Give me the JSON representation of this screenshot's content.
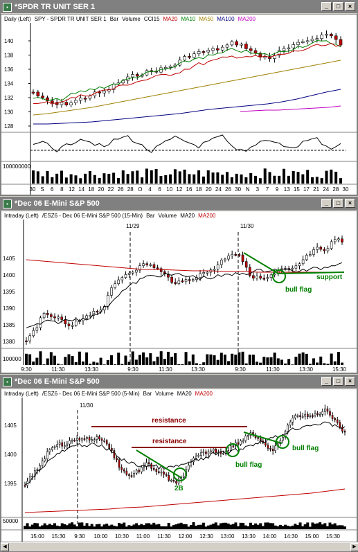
{
  "panels": [
    {
      "title": "*SPDR TR UNIT SER 1",
      "header": [
        "Daily  (Left)",
        "SPY - SPDR TR UNIT SER 1",
        "Bar",
        "Volume",
        "CCI15",
        "MA20",
        "MA10",
        "MA50",
        "MA100",
        "MA200"
      ],
      "header_colors": [
        "#000",
        "#000",
        "#000",
        "#000",
        "#000",
        "#c00000",
        "#008000",
        "#a08000",
        "#000080",
        "#c000c0"
      ],
      "price_ticks": [
        "140",
        "138",
        "136",
        "134",
        "132",
        "130",
        "128"
      ],
      "vol_label": "100000000",
      "dates": [
        "30",
        "S",
        "6",
        "8",
        "12",
        "14",
        "18",
        "20",
        "22",
        "26",
        "28",
        "O",
        "4",
        "6",
        "10",
        "12",
        "16",
        "18",
        "20",
        "24",
        "26",
        "30",
        "N",
        "3",
        "7",
        "9",
        "13",
        "15",
        "17",
        "21",
        "24",
        "28",
        "30"
      ],
      "cci_ticks": []
    },
    {
      "title": "*Dec 06  E-Mini S&P 500",
      "header": [
        "Intraday  (Left)",
        "/ESZ6 - Dec 06  E-Mini S&P 500  (15-Min)",
        "Bar",
        "Volume",
        "MA20",
        "MA200"
      ],
      "header_colors": [
        "#000",
        "#000",
        "#000",
        "#000",
        "#000",
        "#c00000"
      ],
      "price_ticks": [
        "1405",
        "1400",
        "1395",
        "1390",
        "1385",
        "1380"
      ],
      "vol_label": "100000",
      "session_labels": [
        "11/29",
        "11/30"
      ],
      "times": [
        "9:30",
        "11:30",
        "13:30",
        "9:30",
        "11:30",
        "13:30",
        "9:30",
        "11:30",
        "13:30",
        "15:30"
      ],
      "annotations": {
        "flag": "bull flag",
        "support": "support"
      }
    },
    {
      "title": "*Dec 06  E-Mini S&P 500",
      "header": [
        "Intraday  (Left)",
        "/ESZ6 - Dec 06  E-Mini S&P 500  (5-Min)",
        "Bar",
        "Volume",
        "MA20",
        "MA200"
      ],
      "header_colors": [
        "#000",
        "#000",
        "#000",
        "#000",
        "#000",
        "#c00000"
      ],
      "price_ticks": [
        "1405",
        "1400",
        "1395"
      ],
      "vol_label": "50000",
      "session_labels": [
        "11/30"
      ],
      "times": [
        "15:00",
        "15:30",
        "9:30",
        "10:00",
        "10:30",
        "11:00",
        "11:30",
        "12:00",
        "12:30",
        "13:00",
        "13:30",
        "14:00",
        "14:30",
        "15:00",
        "15:30"
      ],
      "annotations": {
        "resistance1": "resistance",
        "resistance2": "resistance",
        "flag1": "bull flag",
        "flag2": "bull flag",
        "twob": "2B"
      }
    }
  ],
  "colors": {
    "ma20": "#c00000",
    "ma10": "#008000",
    "ma50": "#a08000",
    "ma100": "#000080",
    "ma200": "#c000c0",
    "annotation": "#008000",
    "resistance": "#8b0000"
  }
}
